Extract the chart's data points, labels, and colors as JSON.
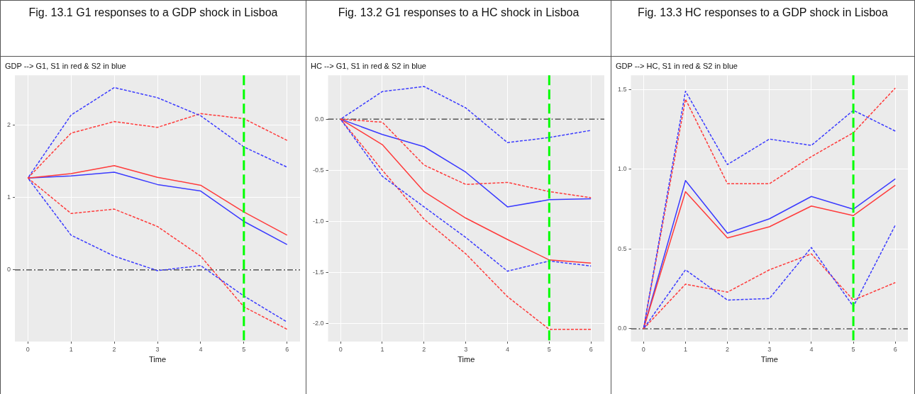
{
  "chart_data": [
    {
      "type": "line",
      "title": "Fig.  13.1 G1 responses to a GDP shock in Lisboa",
      "subtitle": "GDP --> G1, S1 in red & S2 in blue",
      "xlabel": "Time",
      "x": [
        0,
        1,
        2,
        3,
        4,
        5,
        6
      ],
      "xlim": [
        -0.3,
        6.3
      ],
      "xticks": [
        0,
        1,
        2,
        3,
        4,
        5,
        6
      ],
      "ylim": [
        -0.99,
        2.69
      ],
      "yticks": [
        0,
        1,
        2
      ],
      "grid": true,
      "legend": false,
      "marker": "none",
      "series": [
        {
          "color": "#ff3b3b",
          "line_style": "solid",
          "values": [
            1.27,
            1.33,
            1.44,
            1.28,
            1.17,
            0.8,
            0.48
          ]
        },
        {
          "color": "#3b3bff",
          "line_style": "solid",
          "values": [
            1.27,
            1.3,
            1.35,
            1.18,
            1.09,
            0.67,
            0.35
          ]
        },
        {
          "color": "#ff3b3b",
          "line_style": "dashed",
          "values": [
            1.27,
            1.89,
            2.05,
            1.97,
            2.16,
            2.09,
            1.79
          ]
        },
        {
          "color": "#3b3bff",
          "line_style": "dashed",
          "values": [
            1.27,
            2.14,
            2.52,
            2.38,
            2.13,
            1.7,
            1.42
          ]
        },
        {
          "color": "#ff3b3b",
          "line_style": "dashed",
          "values": [
            1.27,
            0.78,
            0.84,
            0.6,
            0.19,
            -0.51,
            -0.82
          ]
        },
        {
          "color": "#3b3bff",
          "line_style": "dashed",
          "values": [
            1.27,
            0.48,
            0.19,
            -0.01,
            0.06,
            -0.36,
            -0.72
          ]
        }
      ],
      "ref_lines": [
        {
          "axis": "y",
          "value": 0,
          "color": "#000000",
          "line_style": "dashed"
        },
        {
          "axis": "x",
          "value": 5,
          "color": "#00ff00",
          "line_style": "dashed"
        }
      ]
    },
    {
      "type": "line",
      "title": "Fig.  13.2 G1 responses to a HC shock in Lisboa",
      "subtitle": "HC --> G1, S1 in red & S2 in blue",
      "xlabel": "Time",
      "x": [
        0,
        1,
        2,
        3,
        4,
        5,
        6
      ],
      "xlim": [
        -0.3,
        6.32
      ],
      "xticks": [
        0,
        1,
        2,
        3,
        4,
        5,
        6
      ],
      "ylim": [
        -2.18,
        0.43
      ],
      "yticks": [
        {
          "value": 0,
          "label": "0.0"
        },
        -0.5,
        {
          "value": -1,
          "label": "-1.0"
        },
        -1.5,
        {
          "value": -2,
          "label": "-2.0"
        }
      ],
      "grid": true,
      "legend": false,
      "marker": "none",
      "series": [
        {
          "color": "#ff3b3b",
          "line_style": "solid",
          "values": [
            0,
            -0.25,
            -0.71,
            -0.97,
            -1.18,
            -1.38,
            -1.41
          ]
        },
        {
          "color": "#3b3bff",
          "line_style": "solid",
          "values": [
            0,
            -0.15,
            -0.27,
            -0.52,
            -0.86,
            -0.79,
            -0.78
          ]
        },
        {
          "color": "#ff3b3b",
          "line_style": "dashed",
          "values": [
            0,
            -0.03,
            -0.45,
            -0.64,
            -0.62,
            -0.71,
            -0.77
          ]
        },
        {
          "color": "#3b3bff",
          "line_style": "dashed",
          "values": [
            0,
            0.27,
            0.32,
            0.11,
            -0.23,
            -0.18,
            -0.11
          ]
        },
        {
          "color": "#ff3b3b",
          "line_style": "dashed",
          "values": [
            0,
            -0.5,
            -0.98,
            -1.32,
            -1.74,
            -2.06,
            -2.06
          ]
        },
        {
          "color": "#3b3bff",
          "line_style": "dashed",
          "values": [
            0,
            -0.56,
            -0.86,
            -1.16,
            -1.49,
            -1.39,
            -1.44
          ]
        }
      ],
      "ref_lines": [
        {
          "axis": "y",
          "value": 0,
          "color": "#000000",
          "line_style": "dashed"
        },
        {
          "axis": "x",
          "value": 5,
          "color": "#00ff00",
          "line_style": "dashed"
        }
      ]
    },
    {
      "type": "line",
      "title": "Fig. 13.3 HC responses to a GDP shock in Lisboa",
      "subtitle": "GDP --> HC, S1 in red & S2 in blue",
      "xlabel": "Time",
      "x": [
        0,
        1,
        2,
        3,
        4,
        5,
        6
      ],
      "xlim": [
        -0.3,
        6.3
      ],
      "xticks": [
        0,
        1,
        2,
        3,
        4,
        5,
        6
      ],
      "ylim": [
        -0.08,
        1.59
      ],
      "yticks": [
        {
          "value": 0,
          "label": "0.0"
        },
        0.5,
        {
          "value": 1,
          "label": "1.0"
        },
        1.5
      ],
      "grid": true,
      "legend": false,
      "marker": "none",
      "series": [
        {
          "color": "#ff3b3b",
          "line_style": "solid",
          "values": [
            0,
            0.86,
            0.57,
            0.64,
            0.77,
            0.71,
            0.9
          ]
        },
        {
          "color": "#3b3bff",
          "line_style": "solid",
          "values": [
            0,
            0.93,
            0.6,
            0.69,
            0.83,
            0.75,
            0.94
          ]
        },
        {
          "color": "#ff3b3b",
          "line_style": "dashed",
          "values": [
            0,
            1.44,
            0.91,
            0.91,
            1.08,
            1.23,
            1.51
          ]
        },
        {
          "color": "#3b3bff",
          "line_style": "dashed",
          "values": [
            0,
            1.49,
            1.03,
            1.19,
            1.15,
            1.37,
            1.24
          ]
        },
        {
          "color": "#ff3b3b",
          "line_style": "dashed",
          "values": [
            0,
            0.28,
            0.23,
            0.37,
            0.47,
            0.18,
            0.29
          ]
        },
        {
          "color": "#3b3bff",
          "line_style": "dashed",
          "values": [
            0,
            0.37,
            0.18,
            0.19,
            0.51,
            0.14,
            0.65
          ]
        }
      ],
      "ref_lines": [
        {
          "axis": "y",
          "value": 0,
          "color": "#000000",
          "line_style": "dashed"
        },
        {
          "axis": "x",
          "value": 5,
          "color": "#00ff00",
          "line_style": "dashed"
        }
      ]
    }
  ]
}
